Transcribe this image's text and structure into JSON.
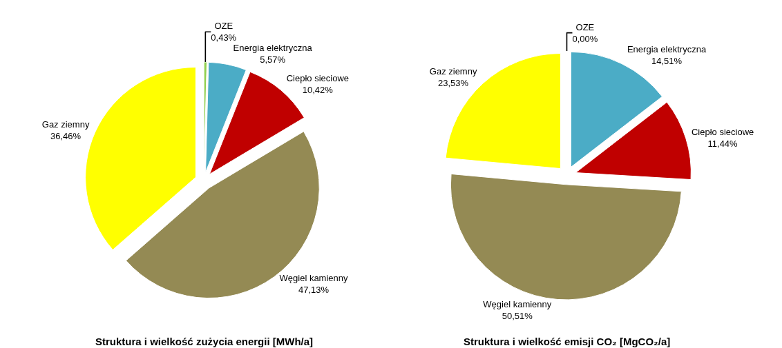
{
  "chart_data": [
    {
      "type": "pie",
      "title": "Struktura i wielkość zużycia energii [MWh/a]",
      "categories": [
        "OZE",
        "Energia elektryczna",
        "Ciepło sieciowe",
        "Węgiel kamienny",
        "Gaz ziemny"
      ],
      "values": [
        0.43,
        5.57,
        10.42,
        47.13,
        36.46
      ],
      "value_labels": [
        "0,43%",
        "5,57%",
        "10,42%",
        "47,13%",
        "36,46%"
      ],
      "colors": [
        "#92d050",
        "#4bacc6",
        "#c00000",
        "#948a54",
        "#ffff00"
      ]
    },
    {
      "type": "pie",
      "title": "Struktura i wielkość emisji CO₂ [MgCO₂/a]",
      "categories": [
        "OZE",
        "Energia elektryczna",
        "Ciepło sieciowe",
        "Węgiel kamienny",
        "Gaz ziemny"
      ],
      "values": [
        0.0,
        14.51,
        11.44,
        50.51,
        23.53
      ],
      "value_labels": [
        "0,00%",
        "14,51%",
        "11,44%",
        "50,51%",
        "23,53%"
      ],
      "colors": [
        "#92d050",
        "#4bacc6",
        "#c00000",
        "#948a54",
        "#ffff00"
      ]
    }
  ]
}
